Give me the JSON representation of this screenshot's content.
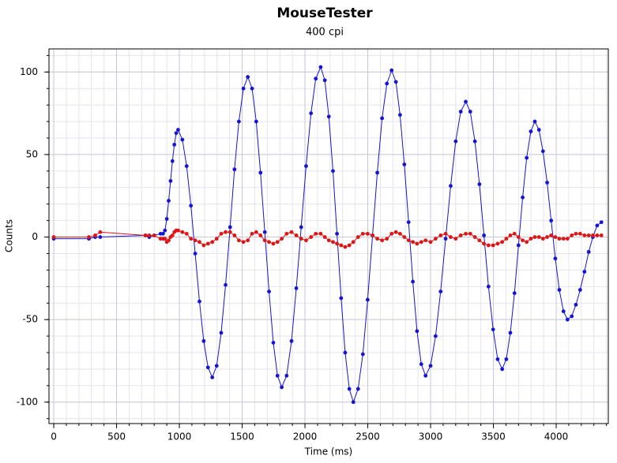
{
  "chart_data": {
    "type": "line",
    "title": "MouseTester",
    "subtitle": "400 cpi",
    "x_label": "Time (ms)",
    "y_label": "Counts",
    "x": [
      0,
      280,
      330,
      370,
      730,
      760,
      800,
      850,
      870,
      885,
      900,
      915,
      930,
      945,
      960,
      975,
      990,
      1024,
      1058,
      1092,
      1126,
      1160,
      1194,
      1228,
      1262,
      1297,
      1333,
      1368,
      1404,
      1439,
      1474,
      1510,
      1545,
      1579,
      1612,
      1646,
      1680,
      1714,
      1748,
      1781,
      1815,
      1854,
      1893,
      1931,
      1970,
      2009,
      2048,
      2086,
      2125,
      2158,
      2190,
      2223,
      2255,
      2288,
      2320,
      2353,
      2385,
      2423,
      2461,
      2499,
      2538,
      2576,
      2614,
      2652,
      2690,
      2724,
      2757,
      2791,
      2825,
      2859,
      2892,
      2926,
      2960,
      3000,
      3040,
      3080,
      3120,
      3160,
      3200,
      3240,
      3280,
      3316,
      3353,
      3389,
      3425,
      3461,
      3498,
      3534,
      3570,
      3603,
      3635,
      3668,
      3700,
      3733,
      3765,
      3798,
      3830,
      3863,
      3895,
      3928,
      3960,
      3993,
      4025,
      4058,
      4090,
      4124,
      4157,
      4191,
      4225,
      4259,
      4292,
      4326,
      4360
    ],
    "series": [
      {
        "color": "#1414d4",
        "values": [
          -1,
          -1,
          0,
          0,
          1,
          0,
          1,
          2,
          2,
          4,
          11,
          22,
          34,
          46,
          56,
          63,
          65,
          59,
          43,
          19,
          -10,
          -39,
          -63,
          -79,
          -85,
          -78,
          -58,
          -29,
          6,
          41,
          70,
          90,
          97,
          90,
          70,
          39,
          3,
          -33,
          -64,
          -84,
          -91,
          -84,
          -63,
          -31,
          6,
          43,
          75,
          96,
          103,
          95,
          73,
          40,
          2,
          -37,
          -70,
          -92,
          -100,
          -92,
          -71,
          -38,
          1,
          39,
          72,
          93,
          101,
          94,
          74,
          44,
          9,
          -27,
          -57,
          -77,
          -84,
          -78,
          -60,
          -33,
          -1,
          31,
          58,
          76,
          82,
          76,
          58,
          32,
          1,
          -30,
          -56,
          -74,
          -80,
          -74,
          -58,
          -34,
          -5,
          24,
          48,
          64,
          70,
          65,
          52,
          33,
          10,
          -13,
          -32,
          -45,
          -50,
          -48,
          -41,
          -32,
          -21,
          -9,
          0,
          7,
          9
        ]
      },
      {
        "color": "#e01414",
        "values": [
          0,
          0,
          1,
          3,
          1,
          1,
          1,
          -1,
          -1,
          -1,
          -3,
          -2,
          0,
          1,
          3,
          4,
          4,
          3,
          2,
          -1,
          -2,
          -3,
          -5,
          -4,
          -3,
          -1,
          2,
          3,
          3,
          1,
          -2,
          -3,
          -2,
          2,
          3,
          1,
          -2,
          -3,
          -4,
          -3,
          -1,
          2,
          3,
          1,
          -1,
          -2,
          0,
          2,
          2,
          0,
          -2,
          -3,
          -4,
          -5,
          -6,
          -5,
          -3,
          0,
          2,
          2,
          1,
          -1,
          -2,
          -1,
          2,
          3,
          2,
          0,
          -2,
          -3,
          -4,
          -3,
          -2,
          -3,
          -1,
          1,
          2,
          0,
          -1,
          1,
          2,
          2,
          0,
          -2,
          -4,
          -5,
          -5,
          -4,
          -3,
          -1,
          1,
          2,
          0,
          -2,
          -3,
          -1,
          0,
          0,
          -1,
          0,
          1,
          0,
          -1,
          -1,
          -1,
          1,
          2,
          2,
          1,
          1,
          1,
          1,
          1
        ]
      }
    ],
    "xlim": [
      -38,
      4415
    ],
    "ylim": [
      -113,
      114
    ],
    "xticks": [
      0,
      500,
      1000,
      1500,
      2000,
      2500,
      3000,
      3500,
      4000
    ],
    "yticks": [
      -100,
      -50,
      0,
      50,
      100
    ],
    "x_minor_ticks": [
      0,
      100,
      200,
      300,
      400,
      500,
      600,
      700,
      800,
      900,
      1000,
      1100,
      1200,
      1300,
      1400,
      1500,
      1600,
      1700,
      1800,
      1900,
      2000,
      2100,
      2200,
      2300,
      2400,
      2500,
      2600,
      2700,
      2800,
      2900,
      3000,
      3100,
      3200,
      3300,
      3400,
      3500,
      3600,
      3700,
      3800,
      3900,
      4000,
      4100,
      4200,
      4300,
      4400
    ],
    "y_minor_ticks": [
      -110,
      -100,
      -90,
      -80,
      -70,
      -60,
      -50,
      -40,
      -30,
      -20,
      -10,
      0,
      10,
      20,
      30,
      40,
      50,
      60,
      70,
      80,
      90,
      100,
      110
    ],
    "grid": true
  }
}
